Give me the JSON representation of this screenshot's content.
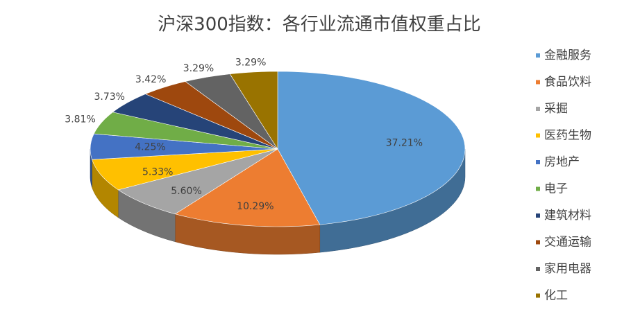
{
  "chart_data": {
    "type": "pie3d",
    "title": "沪深300指数：各行业流通市值权重占比",
    "categories": [
      "金融服务",
      "食品饮料",
      "采掘",
      "医药生物",
      "房地产",
      "电子",
      "建筑材料",
      "交通运输",
      "家用电器",
      "化工"
    ],
    "values": [
      37.21,
      10.29,
      5.6,
      5.33,
      4.25,
      3.81,
      3.73,
      3.42,
      3.29,
      3.29
    ],
    "value_labels": [
      "37.21%",
      "10.29%",
      "5.60%",
      "5.33%",
      "4.25%",
      "3.81%",
      "3.73%",
      "3.42%",
      "3.29%",
      "3.29%"
    ],
    "colors": [
      "#5b9bd5",
      "#ed7d31",
      "#a5a5a5",
      "#ffc000",
      "#4472c4",
      "#70ad47",
      "#264478",
      "#9e480e",
      "#636363",
      "#997300"
    ],
    "legend": "right"
  }
}
